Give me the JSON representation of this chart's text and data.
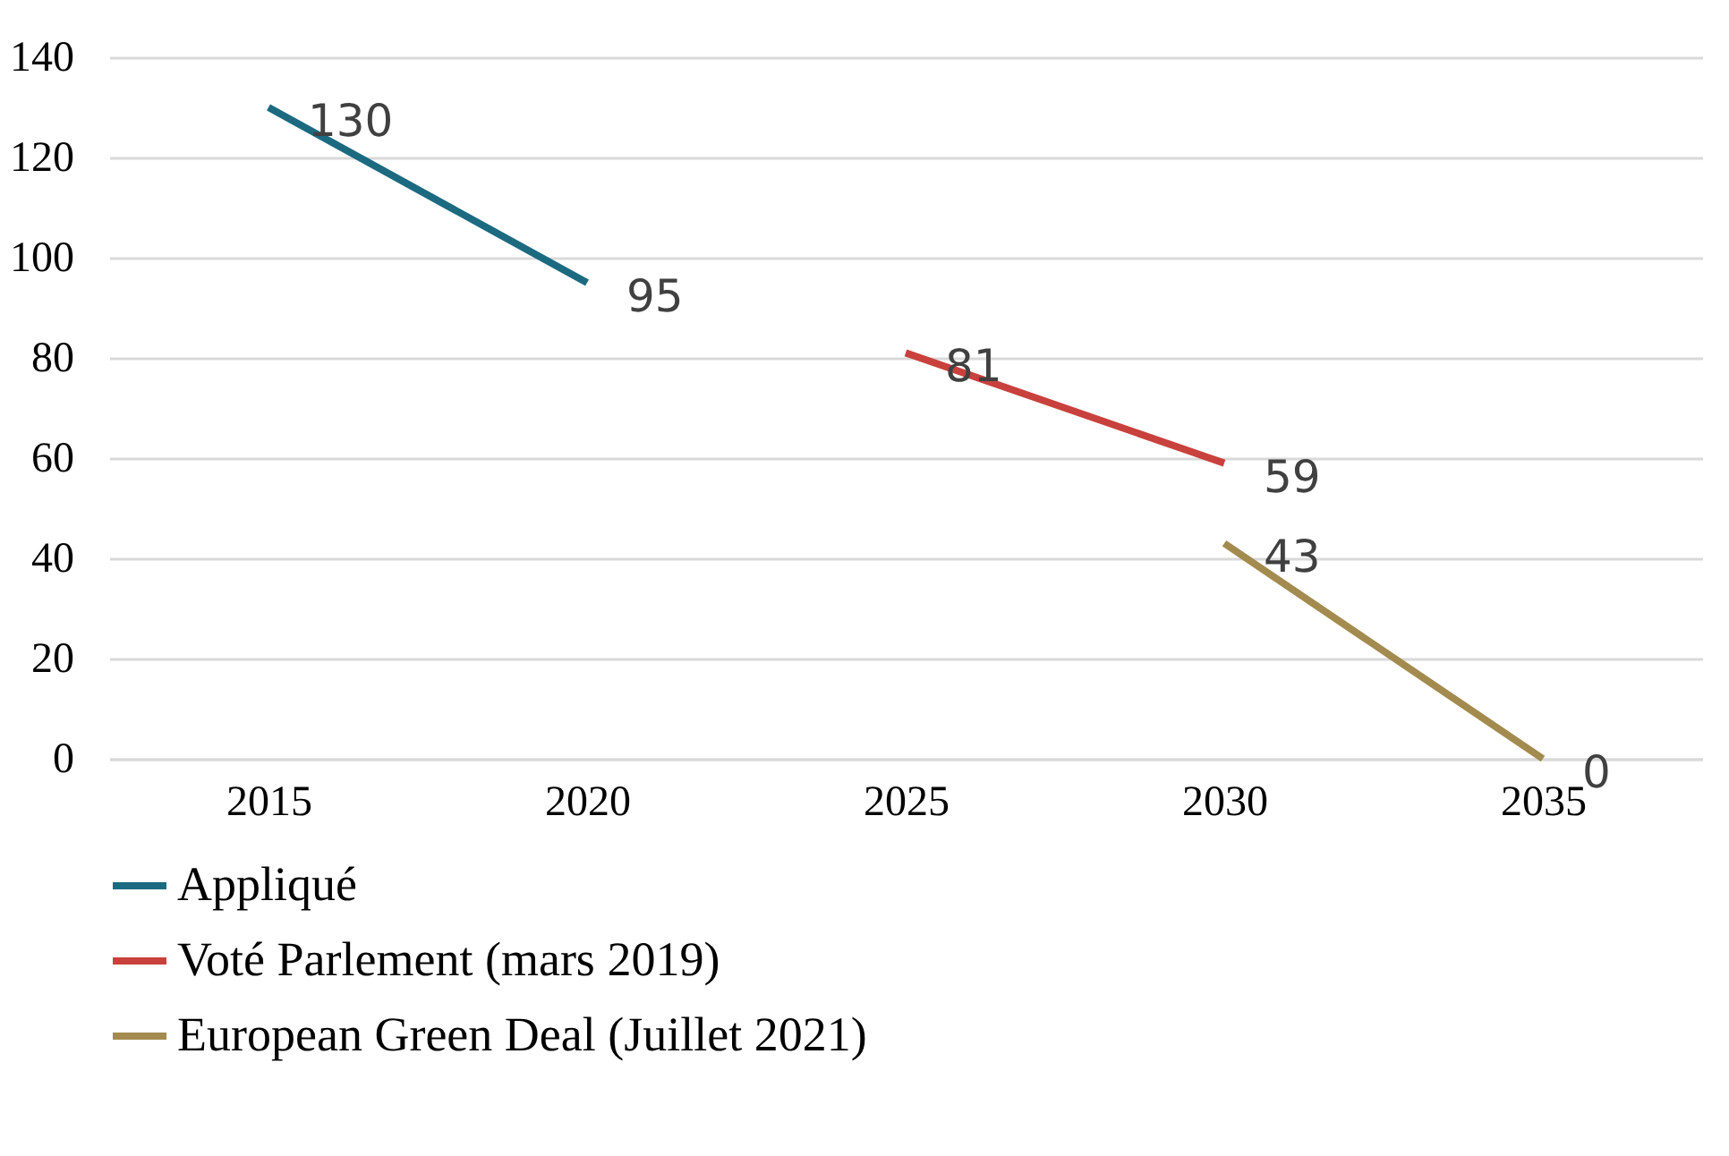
{
  "chart_data": {
    "type": "line",
    "categories": [
      "2015",
      "2020",
      "2025",
      "2030",
      "2035"
    ],
    "series": [
      {
        "name": "Appliqué",
        "color": "#1b6a80",
        "values": [
          130,
          95,
          null,
          null,
          null
        ]
      },
      {
        "name": "Voté Parlement (mars 2019)",
        "color": "#c8413d",
        "values": [
          null,
          null,
          81,
          59,
          null
        ]
      },
      {
        "name": "European Green Deal (Juillet 2021)",
        "color": "#a38b4f",
        "values": [
          null,
          null,
          null,
          43,
          0
        ]
      }
    ],
    "ylim": [
      0,
      140
    ],
    "yticks": [
      0,
      20,
      40,
      60,
      80,
      100,
      120,
      140
    ],
    "grid": "y",
    "legend": "bottom",
    "data_labels": true,
    "marker": "none"
  }
}
